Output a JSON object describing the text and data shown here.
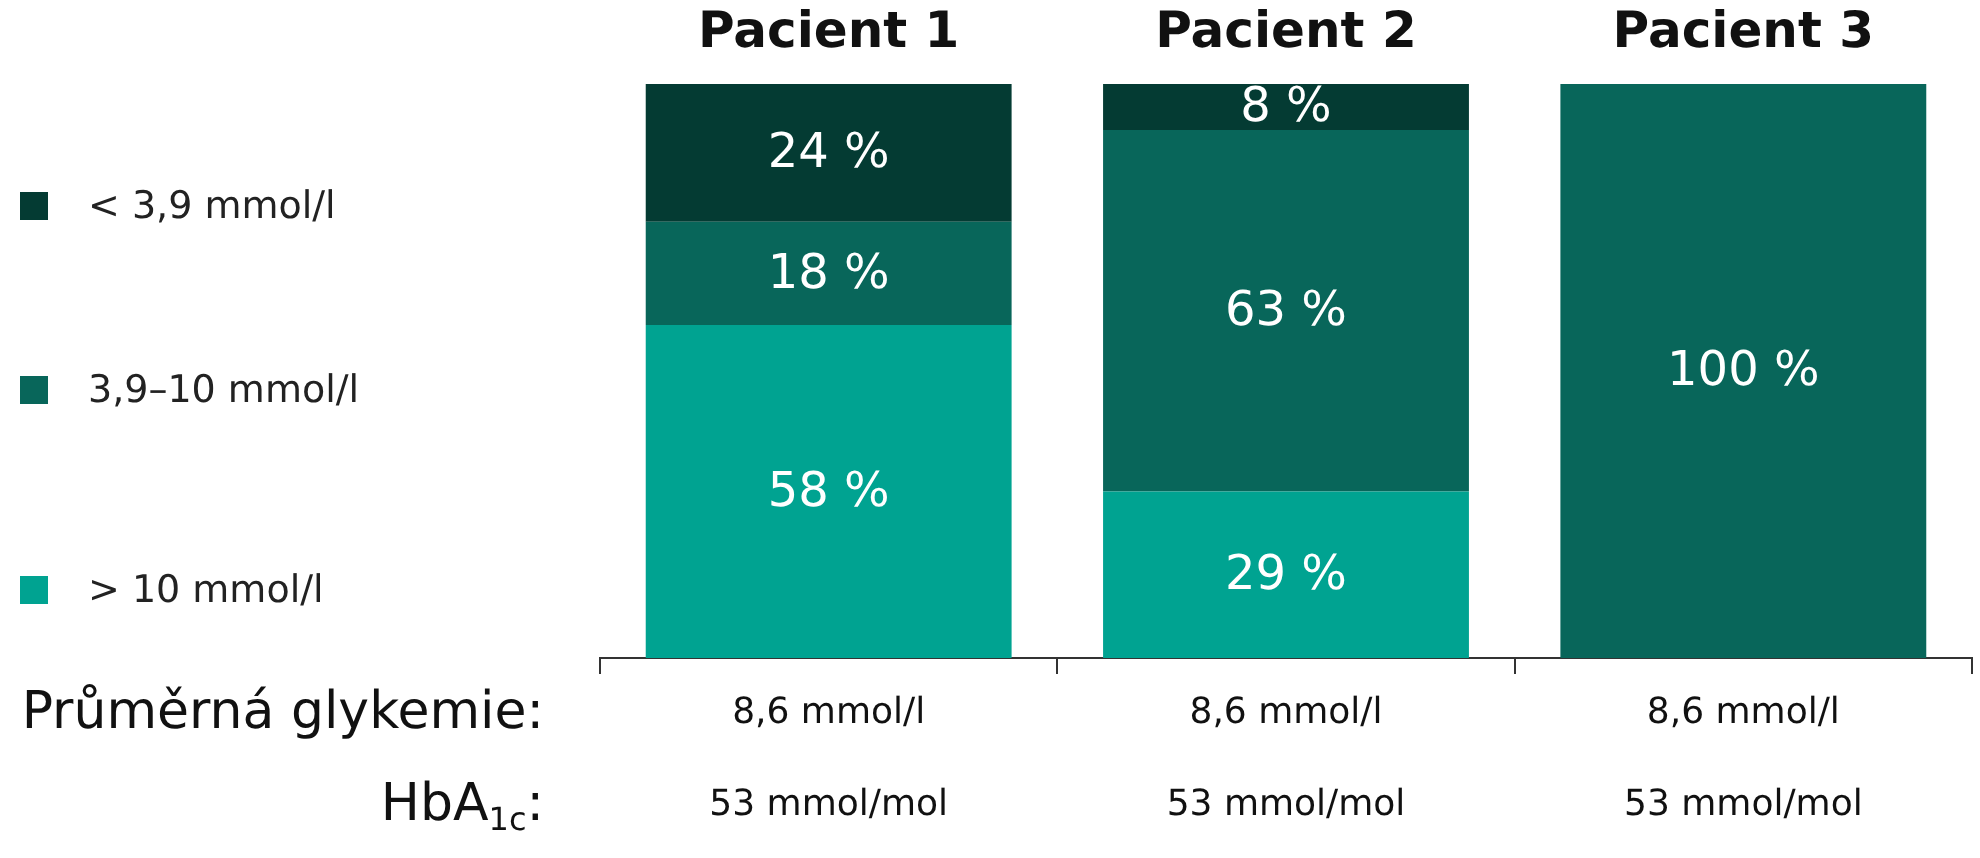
{
  "chart_data": {
    "type": "bar",
    "stacked": true,
    "categories": [
      "Pacient 1",
      "Pacient 2",
      "Pacient 3"
    ],
    "series": [
      {
        "name": "> 10 mmol/l",
        "color": "#00a391",
        "values": [
          58,
          29,
          0
        ],
        "value_labels": [
          "58 %",
          "29 %",
          null
        ]
      },
      {
        "name": "3,9–10 mmol/l",
        "color": "#08665a",
        "values": [
          18,
          63,
          100
        ],
        "value_labels": [
          "18 %",
          "63 %",
          "100 %"
        ]
      },
      {
        "name": "< 3,9 mmol/l",
        "color": "#043b33",
        "values": [
          24,
          8,
          0
        ],
        "value_labels": [
          "24 %",
          "8 %",
          null
        ]
      }
    ],
    "ylim": [
      0,
      100
    ],
    "tick_labels": "x",
    "legend": "left",
    "grid": false,
    "annotations": [
      "Průměrná glykemie:",
      "8,6 mmol/l",
      "8,6 mmol/l",
      "8,6 mmol/l",
      "HbA$_{1c}$:",
      "53 mmol/mol",
      "53 mmol/mol",
      "53 mmol/mol"
    ]
  }
}
